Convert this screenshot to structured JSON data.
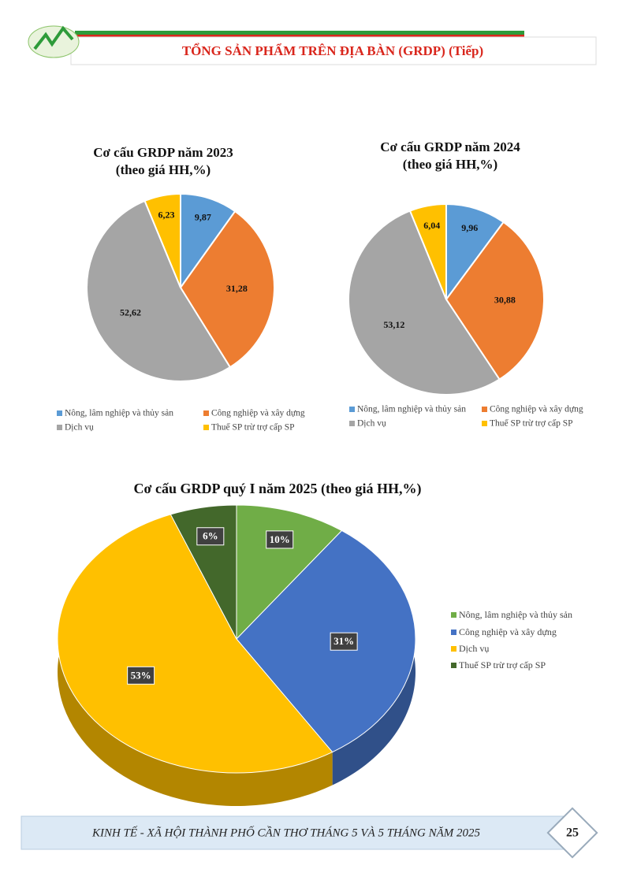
{
  "header": {
    "title": "TỔNG SẢN PHẨM TRÊN ĐỊA BÀN (GRDP) (Tiếp)"
  },
  "chart_data": [
    {
      "type": "pie",
      "title": "Cơ cấu GRDP năm 2023",
      "subtitle": "(theo giá HH,%)",
      "categories": [
        "Nông, lâm nghiệp và thủy sản",
        "Công nghiệp và xây dựng",
        "Dịch vụ",
        "Thuế SP trừ trợ cấp SP"
      ],
      "values": [
        9.87,
        31.28,
        52.62,
        6.23
      ],
      "value_labels": [
        "9,87",
        "31,28",
        "52,62",
        "6,23"
      ],
      "colors": [
        "#5b9bd5",
        "#ed7d31",
        "#a5a5a5",
        "#ffc000"
      ],
      "legend": "bottom"
    },
    {
      "type": "pie",
      "title": "Cơ cấu GRDP năm 2024",
      "subtitle": "(theo giá HH,%)",
      "categories": [
        "Nông, lâm nghiệp và thủy sản",
        "Công nghiệp và xây dựng",
        "Dịch vụ",
        "Thuế SP trừ trợ cấp SP"
      ],
      "values": [
        9.96,
        30.88,
        53.12,
        6.04
      ],
      "value_labels": [
        "9,96",
        "30,88",
        "53,12",
        "6,04"
      ],
      "colors": [
        "#5b9bd5",
        "#ed7d31",
        "#a5a5a5",
        "#ffc000"
      ],
      "legend": "bottom"
    },
    {
      "type": "pie3d",
      "title": "Cơ cấu GRDP quý I năm 2025 (theo giá HH,%)",
      "categories": [
        "Nông, lâm nghiệp và thủy sản",
        "Công nghiệp và xây dựng",
        "Dịch vụ",
        "Thuế SP trừ trợ cấp SP"
      ],
      "values": [
        10,
        31,
        53,
        6
      ],
      "value_labels": [
        "10%",
        "31%",
        "53%",
        "6%"
      ],
      "colors": [
        "#70ad47",
        "#4472c4",
        "#ffc000",
        "#43682b"
      ],
      "legend": "right"
    }
  ],
  "footer": {
    "text": "KINH TẾ - XÃ HỘI THÀNH PHỐ CẦN THƠ THÁNG 5 VÀ 5 THÁNG NĂM 2025",
    "page": "25"
  }
}
